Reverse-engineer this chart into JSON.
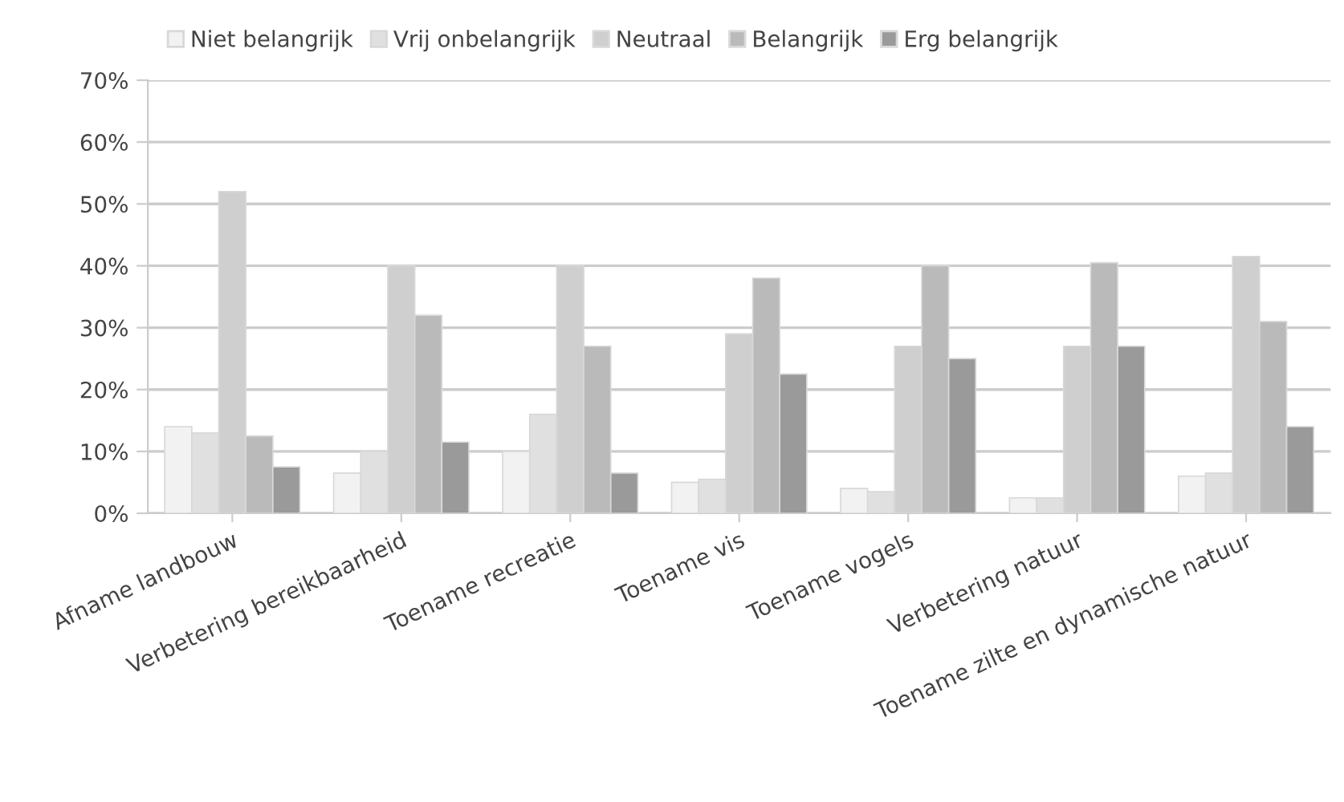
{
  "chart_data": {
    "type": "bar",
    "categories": [
      "Afname landbouw",
      "Verbetering bereikbaarheid",
      "Toename recreatie",
      "Toename vis",
      "Toename vogels",
      "Verbetering natuur",
      "Toename zilte en dynamische natuur"
    ],
    "series": [
      {
        "name": "Niet belangrijk",
        "color": "#f2f2f2",
        "values": [
          14,
          6.5,
          10,
          5,
          4,
          2.5,
          6
        ]
      },
      {
        "name": "Vrij onbelangrijk",
        "color": "#e0e0e0",
        "values": [
          13,
          10,
          16,
          5.5,
          3.5,
          2.5,
          6.5
        ]
      },
      {
        "name": "Neutraal",
        "color": "#cfcfcf",
        "values": [
          52,
          40,
          40,
          29,
          27,
          27,
          41.5
        ]
      },
      {
        "name": "Belangrijk",
        "color": "#bababa",
        "values": [
          12.5,
          32,
          27,
          38,
          40,
          40.5,
          31
        ]
      },
      {
        "name": "Erg belangrijk",
        "color": "#9a9a9a",
        "values": [
          7.5,
          11.5,
          6.5,
          22.5,
          25,
          27,
          14
        ]
      }
    ],
    "ylim": [
      0,
      70
    ],
    "yticks": [
      {
        "value": 0,
        "label": "0%"
      },
      {
        "value": 10,
        "label": "10%"
      },
      {
        "value": 20,
        "label": "20%"
      },
      {
        "value": 30,
        "label": "30%"
      },
      {
        "value": 40,
        "label": "40%"
      },
      {
        "value": 50,
        "label": "50%"
      },
      {
        "value": 60,
        "label": "60%"
      },
      {
        "value": 70,
        "label": "70%"
      }
    ],
    "grid": "y",
    "legend": "top left"
  }
}
